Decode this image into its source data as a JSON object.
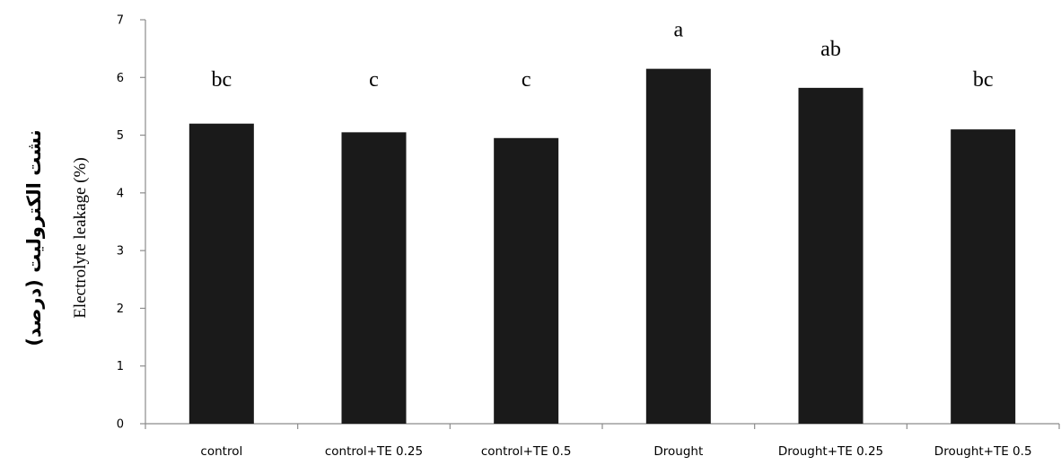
{
  "chart_data": {
    "type": "bar",
    "title": "",
    "xlabel": "",
    "ylabel_fa": "نشت الکترولیت (درصد)",
    "ylabel": "Electrolyte leakage (%)",
    "categories": [
      "control",
      "control+TE 0.25",
      "control+TE 0.5",
      "Drought",
      "Drought+TE 0.25",
      "Drought+TE 0.5"
    ],
    "values": [
      5.2,
      5.05,
      4.95,
      6.15,
      5.82,
      5.1
    ],
    "significance_letters": [
      "bc",
      "c",
      "c",
      "a",
      "ab",
      "bc"
    ],
    "ylim": [
      0,
      7
    ],
    "yticks": [
      "0",
      "1",
      "2",
      "3",
      "4",
      "5",
      "6",
      "7"
    ],
    "grid": false,
    "legend": "none",
    "bar_color": "#1a1a1a",
    "axis_color": "#8c8c8c"
  }
}
